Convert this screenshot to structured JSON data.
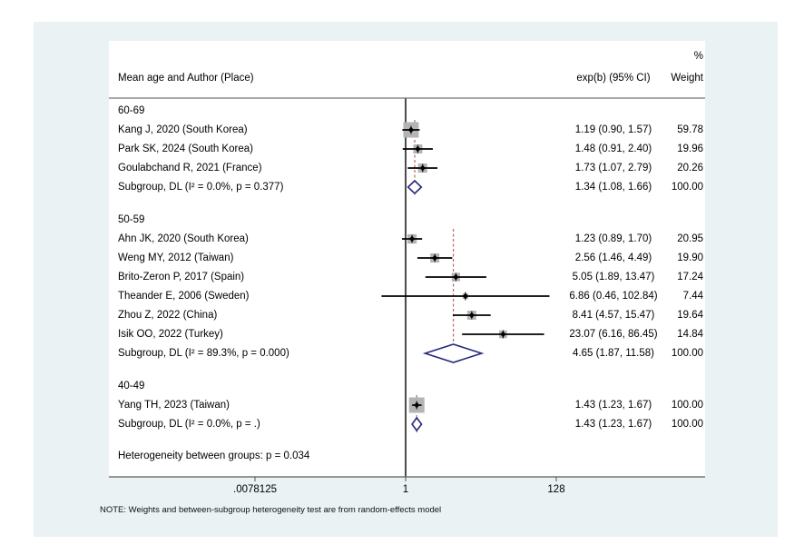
{
  "chart_data": {
    "type": "forest",
    "header": {
      "label_col": "Mean age and Author (Place)",
      "pct": "%",
      "effect_col": "exp(b) (95% CI)",
      "weight_col": "Weight"
    },
    "x_axis": {
      "scale": "log2",
      "tick_labels": [
        ".0078125",
        "1",
        "128"
      ],
      "tick_values": [
        0.0078125,
        1,
        128
      ],
      "ref_line_value": 1
    },
    "groups": [
      {
        "label": "60-69",
        "studies": [
          {
            "label": "Kang J, 2020 (South Korea)",
            "est": 1.19,
            "lo": 0.9,
            "hi": 1.57,
            "effect": "1.19 (0.90, 1.57)",
            "weight": "59.78"
          },
          {
            "label": "Park SK, 2024 (South Korea)",
            "est": 1.48,
            "lo": 0.91,
            "hi": 2.4,
            "effect": "1.48 (0.91, 2.40)",
            "weight": "19.96"
          },
          {
            "label": "Goulabchand R, 2021 (France)",
            "est": 1.73,
            "lo": 1.07,
            "hi": 2.79,
            "effect": "1.73 (1.07, 2.79)",
            "weight": "20.26"
          }
        ],
        "subgroup": {
          "label": "Subgroup, DL (I² = 0.0%, p = 0.377)",
          "est": 1.34,
          "lo": 1.08,
          "hi": 1.66,
          "effect": "1.34 (1.08, 1.66)",
          "weight": "100.00"
        }
      },
      {
        "label": "50-59",
        "studies": [
          {
            "label": "Ahn JK, 2020 (South Korea)",
            "est": 1.23,
            "lo": 0.89,
            "hi": 1.7,
            "effect": "1.23 (0.89, 1.70)",
            "weight": "20.95"
          },
          {
            "label": "Weng MY, 2012 (Taiwan)",
            "est": 2.56,
            "lo": 1.46,
            "hi": 4.49,
            "effect": "2.56 (1.46, 4.49)",
            "weight": "19.90"
          },
          {
            "label": "Brito-Zeron P, 2017 (Spain)",
            "est": 5.05,
            "lo": 1.89,
            "hi": 13.47,
            "effect": "5.05 (1.89, 13.47)",
            "weight": "17.24"
          },
          {
            "label": "Theander E, 2006 (Sweden)",
            "est": 6.86,
            "lo": 0.46,
            "hi": 102.84,
            "effect": "6.86 (0.46, 102.84)",
            "weight": "7.44"
          },
          {
            "label": "Zhou Z, 2022 (China)",
            "est": 8.41,
            "lo": 4.57,
            "hi": 15.47,
            "effect": "8.41 (4.57, 15.47)",
            "weight": "19.64"
          },
          {
            "label": "Isik OO, 2022 (Turkey)",
            "est": 23.07,
            "lo": 6.16,
            "hi": 86.45,
            "effect": "23.07 (6.16, 86.45)",
            "weight": "14.84"
          }
        ],
        "subgroup": {
          "label": "Subgroup, DL (I² = 89.3%, p = 0.000)",
          "est": 4.65,
          "lo": 1.87,
          "hi": 11.58,
          "effect": "4.65 (1.87, 11.58)",
          "weight": "100.00"
        }
      },
      {
        "label": "40-49",
        "studies": [
          {
            "label": "Yang TH, 2023 (Taiwan)",
            "est": 1.43,
            "lo": 1.23,
            "hi": 1.67,
            "effect": "1.43 (1.23, 1.67)",
            "weight": "100.00"
          }
        ],
        "subgroup": {
          "label": "Subgroup, DL (I² = 0.0%, p = .)",
          "est": 1.43,
          "lo": 1.23,
          "hi": 1.67,
          "effect": "1.43 (1.23, 1.67)",
          "weight": "100.00"
        }
      }
    ],
    "heterogeneity_note": "Heterogeneity between groups: p = 0.034",
    "footnote": "NOTE: Weights and between-subgroup heterogeneity test are from  random-effects model",
    "colors": {
      "graph_region": "#eaf2f3",
      "plot_region": "#ffffff",
      "ci_line": "#000000",
      "weight_square": "#b4b4b4",
      "diamond_stroke": "#28287d",
      "diamond_fill": "#ffffff",
      "dashed_line": "#b4665c",
      "axis_line": "#757575",
      "ref_line": "#000000",
      "text": "#000000"
    }
  }
}
